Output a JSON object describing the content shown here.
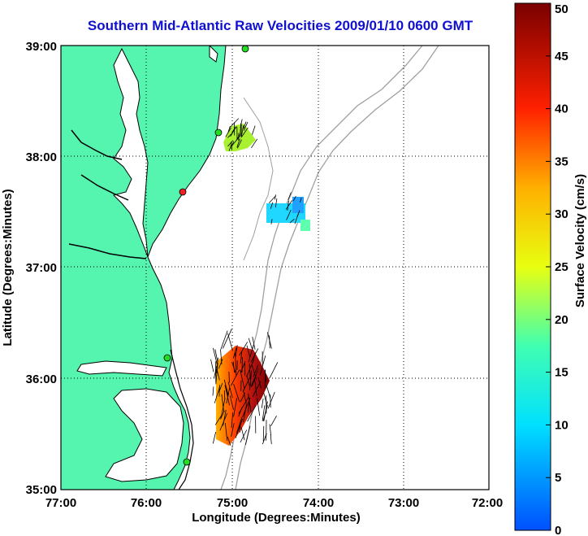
{
  "title": "Southern Mid-Atlantic Raw Velocities 2009/01/10 0600 GMT",
  "map": {
    "xlabel": "Longitude (Degrees:Minutes)",
    "ylabel": "Latitude (Degrees:Minutes)",
    "x_ticks": [
      "77:00",
      "76:00",
      "75:00",
      "74:00",
      "73:00",
      "72:00"
    ],
    "y_ticks": [
      "39:00",
      "38:00",
      "37:00",
      "36:00",
      "35:00"
    ],
    "land_color": "#55f5b0",
    "coast_color": "#000000",
    "bathy_color": "#a0a0a0",
    "grid": true
  },
  "colorbar": {
    "label": "Surface Velocity (cm/s)",
    "ticks": [
      "50",
      "45",
      "40",
      "35",
      "30",
      "25",
      "20",
      "15",
      "10",
      "5",
      "0"
    ],
    "range": [
      0,
      50
    ],
    "colormap": "jet-like blue to dark red"
  },
  "stations": [
    {
      "color": "#22dd22"
    },
    {
      "color": "#22dd22"
    },
    {
      "color": "#ee2222"
    },
    {
      "color": "#22dd22"
    },
    {
      "color": "#22dd22"
    }
  ]
}
